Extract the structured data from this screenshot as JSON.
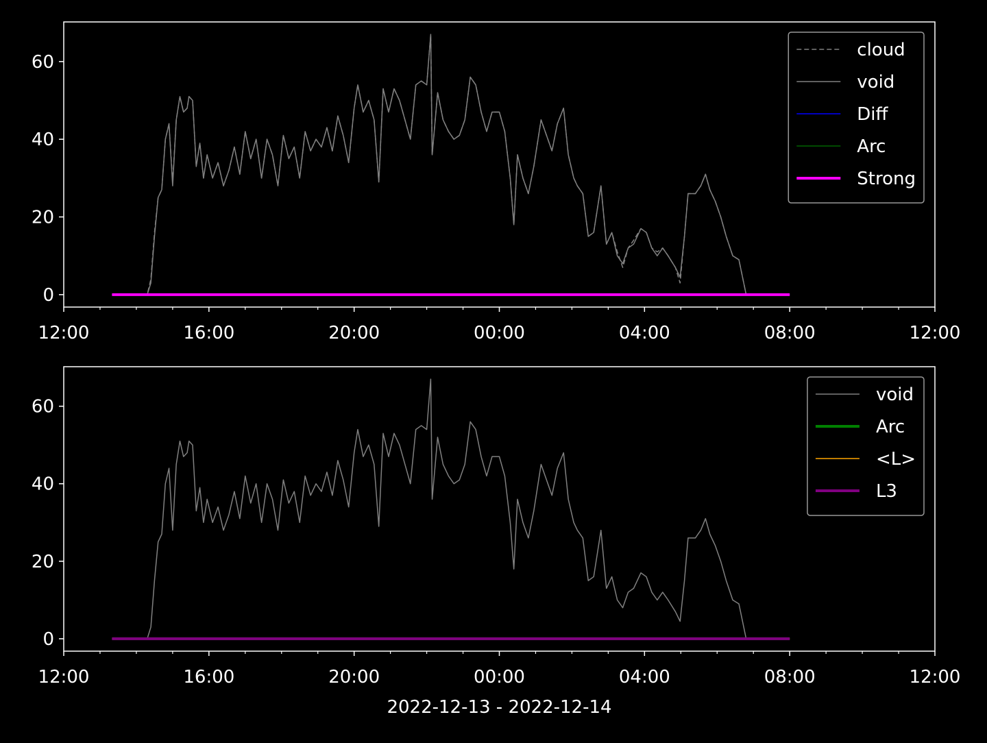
{
  "chart_data": [
    {
      "type": "line",
      "x": [
        13.33,
        14.3,
        14.4,
        14.5,
        14.6,
        14.7,
        14.8,
        14.9,
        15.0,
        15.1,
        15.2,
        15.3,
        15.4,
        15.45,
        15.55,
        15.65,
        15.75,
        15.85,
        15.95,
        16.1,
        16.25,
        16.4,
        16.55,
        16.7,
        16.85,
        17.0,
        17.15,
        17.3,
        17.45,
        17.6,
        17.75,
        17.9,
        18.05,
        18.2,
        18.35,
        18.5,
        18.65,
        18.8,
        18.95,
        19.1,
        19.25,
        19.4,
        19.55,
        19.7,
        19.85,
        20.0,
        20.1,
        20.25,
        20.4,
        20.55,
        20.68,
        20.8,
        20.95,
        21.1,
        21.25,
        21.4,
        21.55,
        21.7,
        21.85,
        22.0,
        22.11,
        22.15,
        22.3,
        22.45,
        22.6,
        22.75,
        22.9,
        23.05,
        23.2,
        23.35,
        23.5,
        23.65,
        23.8,
        24.0,
        24.15,
        24.3,
        24.4,
        24.5,
        24.65,
        24.8,
        24.95,
        25.15,
        25.3,
        25.45,
        25.6,
        25.77,
        25.9,
        26.05,
        26.15,
        26.3,
        26.45,
        26.6,
        26.8,
        26.95,
        27.1,
        27.25,
        27.4,
        27.55,
        27.7,
        27.9,
        28.05,
        28.2,
        28.35,
        28.5,
        28.65,
        28.85,
        28.98,
        29.1,
        29.2,
        29.4,
        29.55,
        29.68,
        29.8,
        29.95,
        30.1,
        30.25,
        30.43,
        30.6,
        30.8
      ],
      "series": [
        {
          "name": "cloud",
          "color": "#808080",
          "linestyle": "dashed",
          "linewidth": 1.5,
          "values": [
            0,
            0,
            4,
            16,
            25,
            27,
            40,
            44,
            29,
            45,
            51,
            47,
            48,
            51,
            50,
            33,
            39,
            30,
            36,
            30,
            34,
            28,
            32,
            38,
            31,
            42,
            35,
            40,
            30,
            40,
            36,
            28,
            41,
            35,
            38,
            30,
            42,
            37,
            40,
            38,
            43,
            37,
            46,
            41,
            34,
            48,
            54,
            47,
            50,
            45,
            29,
            53,
            47,
            53,
            50,
            45,
            40,
            54,
            55,
            54,
            67,
            36,
            52,
            45,
            42,
            40,
            41,
            45,
            56,
            54,
            47,
            42,
            47,
            47,
            42,
            30,
            18,
            36,
            30,
            26,
            33,
            45,
            41,
            37,
            44,
            48,
            36,
            30,
            28,
            26,
            15,
            16,
            28,
            13,
            16,
            11,
            7,
            12,
            14,
            17,
            16,
            12,
            11,
            12,
            10,
            7,
            3,
            15,
            26,
            26,
            28,
            31,
            27,
            24,
            20,
            15,
            10,
            9,
            0
          ]
        },
        {
          "name": "void",
          "color": "#808080",
          "linewidth": 1.5,
          "values": [
            0,
            0,
            3,
            15,
            25,
            27,
            40,
            44,
            28,
            45,
            51,
            47,
            48,
            51,
            50,
            33,
            39,
            30,
            36,
            30,
            34,
            28,
            32,
            38,
            31,
            42,
            35,
            40,
            30,
            40,
            36,
            28,
            41,
            35,
            38,
            30,
            42,
            37,
            40,
            38,
            43,
            37,
            46,
            41,
            34,
            48,
            54,
            47,
            50,
            45,
            29,
            53,
            47,
            53,
            50,
            45,
            40,
            54,
            55,
            54,
            67,
            36,
            52,
            45,
            42,
            40,
            41,
            45,
            56,
            54,
            47,
            42,
            47,
            47,
            42,
            30,
            18,
            36,
            30,
            26,
            33,
            45,
            41,
            37,
            44,
            48,
            36,
            30,
            28,
            26,
            15,
            16,
            28,
            13,
            16,
            10,
            8,
            12,
            13,
            17,
            16,
            12,
            10,
            12,
            10,
            7,
            4.5,
            15,
            26,
            26,
            28,
            31,
            27,
            24,
            20,
            15,
            10,
            9,
            0
          ]
        },
        {
          "name": "Diff",
          "color": "#0000ff",
          "linewidth": 1.5,
          "x": [
            13.33,
            32
          ],
          "values": [
            0,
            0
          ]
        },
        {
          "name": "Arc",
          "color": "#006400",
          "linewidth": 1.5,
          "x": [
            13.33,
            32
          ],
          "values": [
            0,
            0
          ]
        },
        {
          "name": "Strong",
          "color": "#ff00ff",
          "linewidth": 4,
          "x": [
            13.33,
            32
          ],
          "values": [
            0,
            0
          ]
        }
      ],
      "xlim": [
        12,
        36
      ],
      "ylim": [
        -3.2,
        70.2
      ],
      "xticks": [
        {
          "value": 12,
          "label": "12:00"
        },
        {
          "value": 16,
          "label": "16:00"
        },
        {
          "value": 20,
          "label": "20:00"
        },
        {
          "value": 24,
          "label": "00:00"
        },
        {
          "value": 28,
          "label": "04:00"
        },
        {
          "value": 32,
          "label": "08:00"
        },
        {
          "value": 36,
          "label": "12:00"
        }
      ],
      "xminorticks": [
        13,
        14,
        15,
        17,
        18,
        19,
        21,
        22,
        23,
        25,
        26,
        27,
        29,
        30,
        31,
        33,
        34,
        35
      ],
      "yticks": [
        0,
        20,
        40,
        60
      ],
      "legend": "upper right"
    },
    {
      "type": "line",
      "x": [
        13.33,
        14.3,
        14.4,
        14.5,
        14.6,
        14.7,
        14.8,
        14.9,
        15.0,
        15.1,
        15.2,
        15.3,
        15.4,
        15.45,
        15.55,
        15.65,
        15.75,
        15.85,
        15.95,
        16.1,
        16.25,
        16.4,
        16.55,
        16.7,
        16.85,
        17.0,
        17.15,
        17.3,
        17.45,
        17.6,
        17.75,
        17.9,
        18.05,
        18.2,
        18.35,
        18.5,
        18.65,
        18.8,
        18.95,
        19.1,
        19.25,
        19.4,
        19.55,
        19.7,
        19.85,
        20.0,
        20.1,
        20.25,
        20.4,
        20.55,
        20.68,
        20.8,
        20.95,
        21.1,
        21.25,
        21.4,
        21.55,
        21.7,
        21.85,
        22.0,
        22.11,
        22.15,
        22.3,
        22.45,
        22.6,
        22.75,
        22.9,
        23.05,
        23.2,
        23.35,
        23.5,
        23.65,
        23.8,
        24.0,
        24.15,
        24.3,
        24.4,
        24.5,
        24.65,
        24.8,
        24.95,
        25.15,
        25.3,
        25.45,
        25.6,
        25.77,
        25.9,
        26.05,
        26.15,
        26.3,
        26.45,
        26.6,
        26.8,
        26.95,
        27.1,
        27.25,
        27.4,
        27.55,
        27.7,
        27.9,
        28.05,
        28.2,
        28.35,
        28.5,
        28.65,
        28.85,
        28.98,
        29.1,
        29.2,
        29.4,
        29.55,
        29.68,
        29.8,
        29.95,
        30.1,
        30.25,
        30.43,
        30.6,
        30.8
      ],
      "series": [
        {
          "name": "void",
          "color": "#808080",
          "linewidth": 1.5,
          "values": [
            0,
            0,
            3,
            15,
            25,
            27,
            40,
            44,
            28,
            45,
            51,
            47,
            48,
            51,
            50,
            33,
            39,
            30,
            36,
            30,
            34,
            28,
            32,
            38,
            31,
            42,
            35,
            40,
            30,
            40,
            36,
            28,
            41,
            35,
            38,
            30,
            42,
            37,
            40,
            38,
            43,
            37,
            46,
            41,
            34,
            48,
            54,
            47,
            50,
            45,
            29,
            53,
            47,
            53,
            50,
            45,
            40,
            54,
            55,
            54,
            67,
            36,
            52,
            45,
            42,
            40,
            41,
            45,
            56,
            54,
            47,
            42,
            47,
            47,
            42,
            30,
            18,
            36,
            30,
            26,
            33,
            45,
            41,
            37,
            44,
            48,
            36,
            30,
            28,
            26,
            15,
            16,
            28,
            13,
            16,
            10,
            8,
            12,
            13,
            17,
            16,
            12,
            10,
            12,
            10,
            7,
            4.5,
            15,
            26,
            26,
            28,
            31,
            27,
            24,
            20,
            15,
            10,
            9,
            0
          ]
        },
        {
          "name": "Arc",
          "color": "#008000",
          "linewidth": 4,
          "x": [
            13.33,
            32
          ],
          "values": [
            0,
            0
          ]
        },
        {
          "name": "<L>",
          "color": "#ffa500",
          "linewidth": 1.5,
          "x": [
            13.33,
            32
          ],
          "values": [
            0,
            0
          ]
        },
        {
          "name": "L3",
          "color": "#800080",
          "linewidth": 4,
          "x": [
            13.33,
            32
          ],
          "values": [
            0,
            0
          ]
        }
      ],
      "xlim": [
        12,
        36
      ],
      "ylim": [
        -3.2,
        70.2
      ],
      "xticks": [
        {
          "value": 12,
          "label": "12:00"
        },
        {
          "value": 16,
          "label": "16:00"
        },
        {
          "value": 20,
          "label": "20:00"
        },
        {
          "value": 24,
          "label": "00:00"
        },
        {
          "value": 28,
          "label": "04:00"
        },
        {
          "value": 32,
          "label": "08:00"
        },
        {
          "value": 36,
          "label": "12:00"
        }
      ],
      "xminorticks": [
        13,
        14,
        15,
        17,
        18,
        19,
        21,
        22,
        23,
        25,
        26,
        27,
        29,
        30,
        31,
        33,
        34,
        35
      ],
      "yticks": [
        0,
        20,
        40,
        60
      ],
      "xlabel": "2022-12-13 - 2022-12-14",
      "legend": "upper right"
    }
  ]
}
